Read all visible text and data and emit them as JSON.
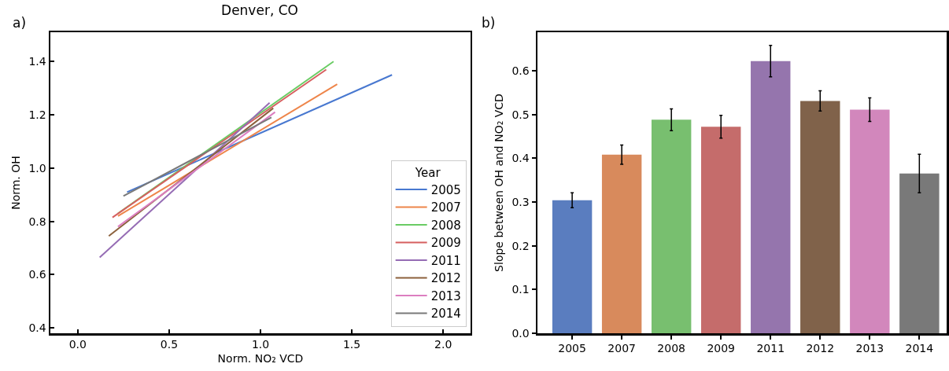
{
  "chart_data": [
    {
      "type": "line",
      "title": "Denver, CO",
      "xlabel": "Norm. NO₂ VCD",
      "ylabel": "Norm. OH",
      "legend_title": "Year",
      "annotations": [
        "a)"
      ],
      "legend": "bottom right",
      "grid": false,
      "xlim": [
        -0.15,
        2.15
      ],
      "xticks": [
        {
          "value": 0,
          "label": "0.0"
        },
        0.5,
        {
          "value": 1,
          "label": "1.0"
        },
        1.5,
        {
          "value": 2,
          "label": "2.0"
        }
      ],
      "ylim": [
        0.38,
        1.51
      ],
      "yticks": [
        0.4,
        0.6,
        0.8,
        {
          "value": 1,
          "label": "1.0"
        },
        1.2,
        1.4
      ],
      "series": [
        {
          "name": "2005",
          "color": "#4878d0",
          "x": [
            0.27,
            1.72
          ],
          "values": [
            0.91,
            1.35
          ]
        },
        {
          "name": "2007",
          "color": "#ee854a",
          "x": [
            0.22,
            1.42
          ],
          "values": [
            0.82,
            1.315
          ]
        },
        {
          "name": "2008",
          "color": "#6acc64",
          "x": [
            0.22,
            1.4
          ],
          "values": [
            0.83,
            1.4
          ]
        },
        {
          "name": "2009",
          "color": "#d65f5f",
          "x": [
            0.19,
            1.36
          ],
          "values": [
            0.815,
            1.37
          ]
        },
        {
          "name": "2011",
          "color": "#956cb4",
          "x": [
            0.12,
            1.05
          ],
          "values": [
            0.665,
            1.245
          ]
        },
        {
          "name": "2012",
          "color": "#8c613c",
          "x": [
            0.17,
            1.07
          ],
          "values": [
            0.745,
            1.225
          ]
        },
        {
          "name": "2013",
          "color": "#dc7ec0",
          "x": [
            0.22,
            1.08
          ],
          "values": [
            0.78,
            1.21
          ]
        },
        {
          "name": "2014",
          "color": "#797979",
          "x": [
            0.25,
            1.06
          ],
          "values": [
            0.895,
            1.19
          ]
        }
      ]
    },
    {
      "type": "bar",
      "ylabel": "Slope between OH and NO₂ VCD",
      "annotations": [
        "b)"
      ],
      "legend": false,
      "grid": false,
      "categories": [
        "2005",
        "2007",
        "2008",
        "2009",
        "2011",
        "2012",
        "2013",
        "2014"
      ],
      "values": [
        0.304,
        0.408,
        0.488,
        0.472,
        0.622,
        0.531,
        0.511,
        0.365
      ],
      "colors": [
        "#5a7dbf",
        "#d88a5c",
        "#78bf6f",
        "#c56c6b",
        "#9575ad",
        "#80624a",
        "#d287bc",
        "#797979"
      ],
      "errors": [
        0.017,
        [
          0.386,
          0.43
        ],
        0.025,
        0.026,
        0.036,
        0.023,
        0.027,
        0.044
      ],
      "ylim": [
        0,
        0.688
      ],
      "yticks": [
        {
          "value": 0,
          "label": "0.0"
        },
        0.1,
        0.2,
        0.3,
        0.4,
        0.5,
        0.6
      ]
    }
  ]
}
